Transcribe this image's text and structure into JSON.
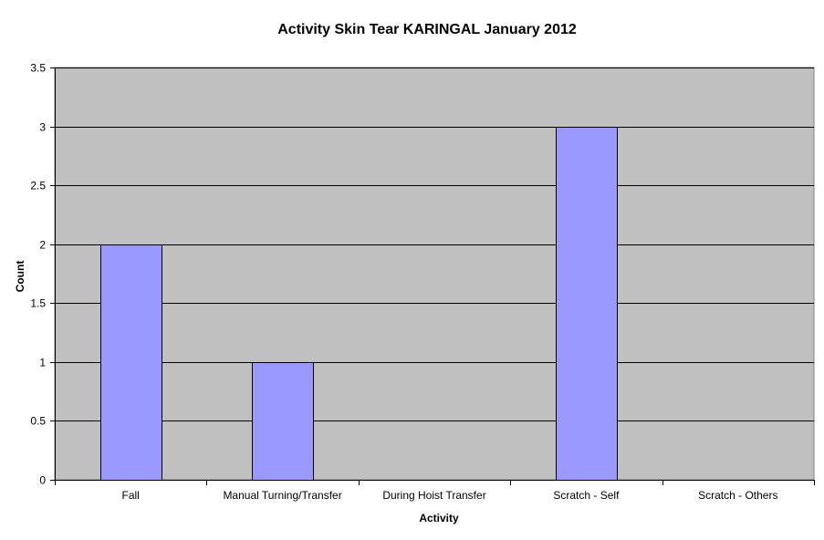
{
  "chart_data": {
    "type": "bar",
    "title": "Activity  Skin Tear KARINGAL January 2012",
    "xlabel": "Activity",
    "ylabel": "Count",
    "categories": [
      "Fall",
      "Manual Turning/Transfer",
      "During Hoist Transfer",
      "Scratch - Self",
      "Scratch - Others"
    ],
    "values": [
      2,
      1,
      0,
      3,
      0
    ],
    "ylim": [
      0,
      3.5
    ],
    "yticks": [
      "0",
      "0.5",
      "1",
      "1.5",
      "2",
      "2.5",
      "3",
      "3.5"
    ],
    "grid": true,
    "legend": "none",
    "colors": {
      "bar_fill": "#9999ff",
      "bar_stroke": "#000000",
      "plot_background": "#c0c0c0",
      "gridline": "#000000"
    }
  }
}
